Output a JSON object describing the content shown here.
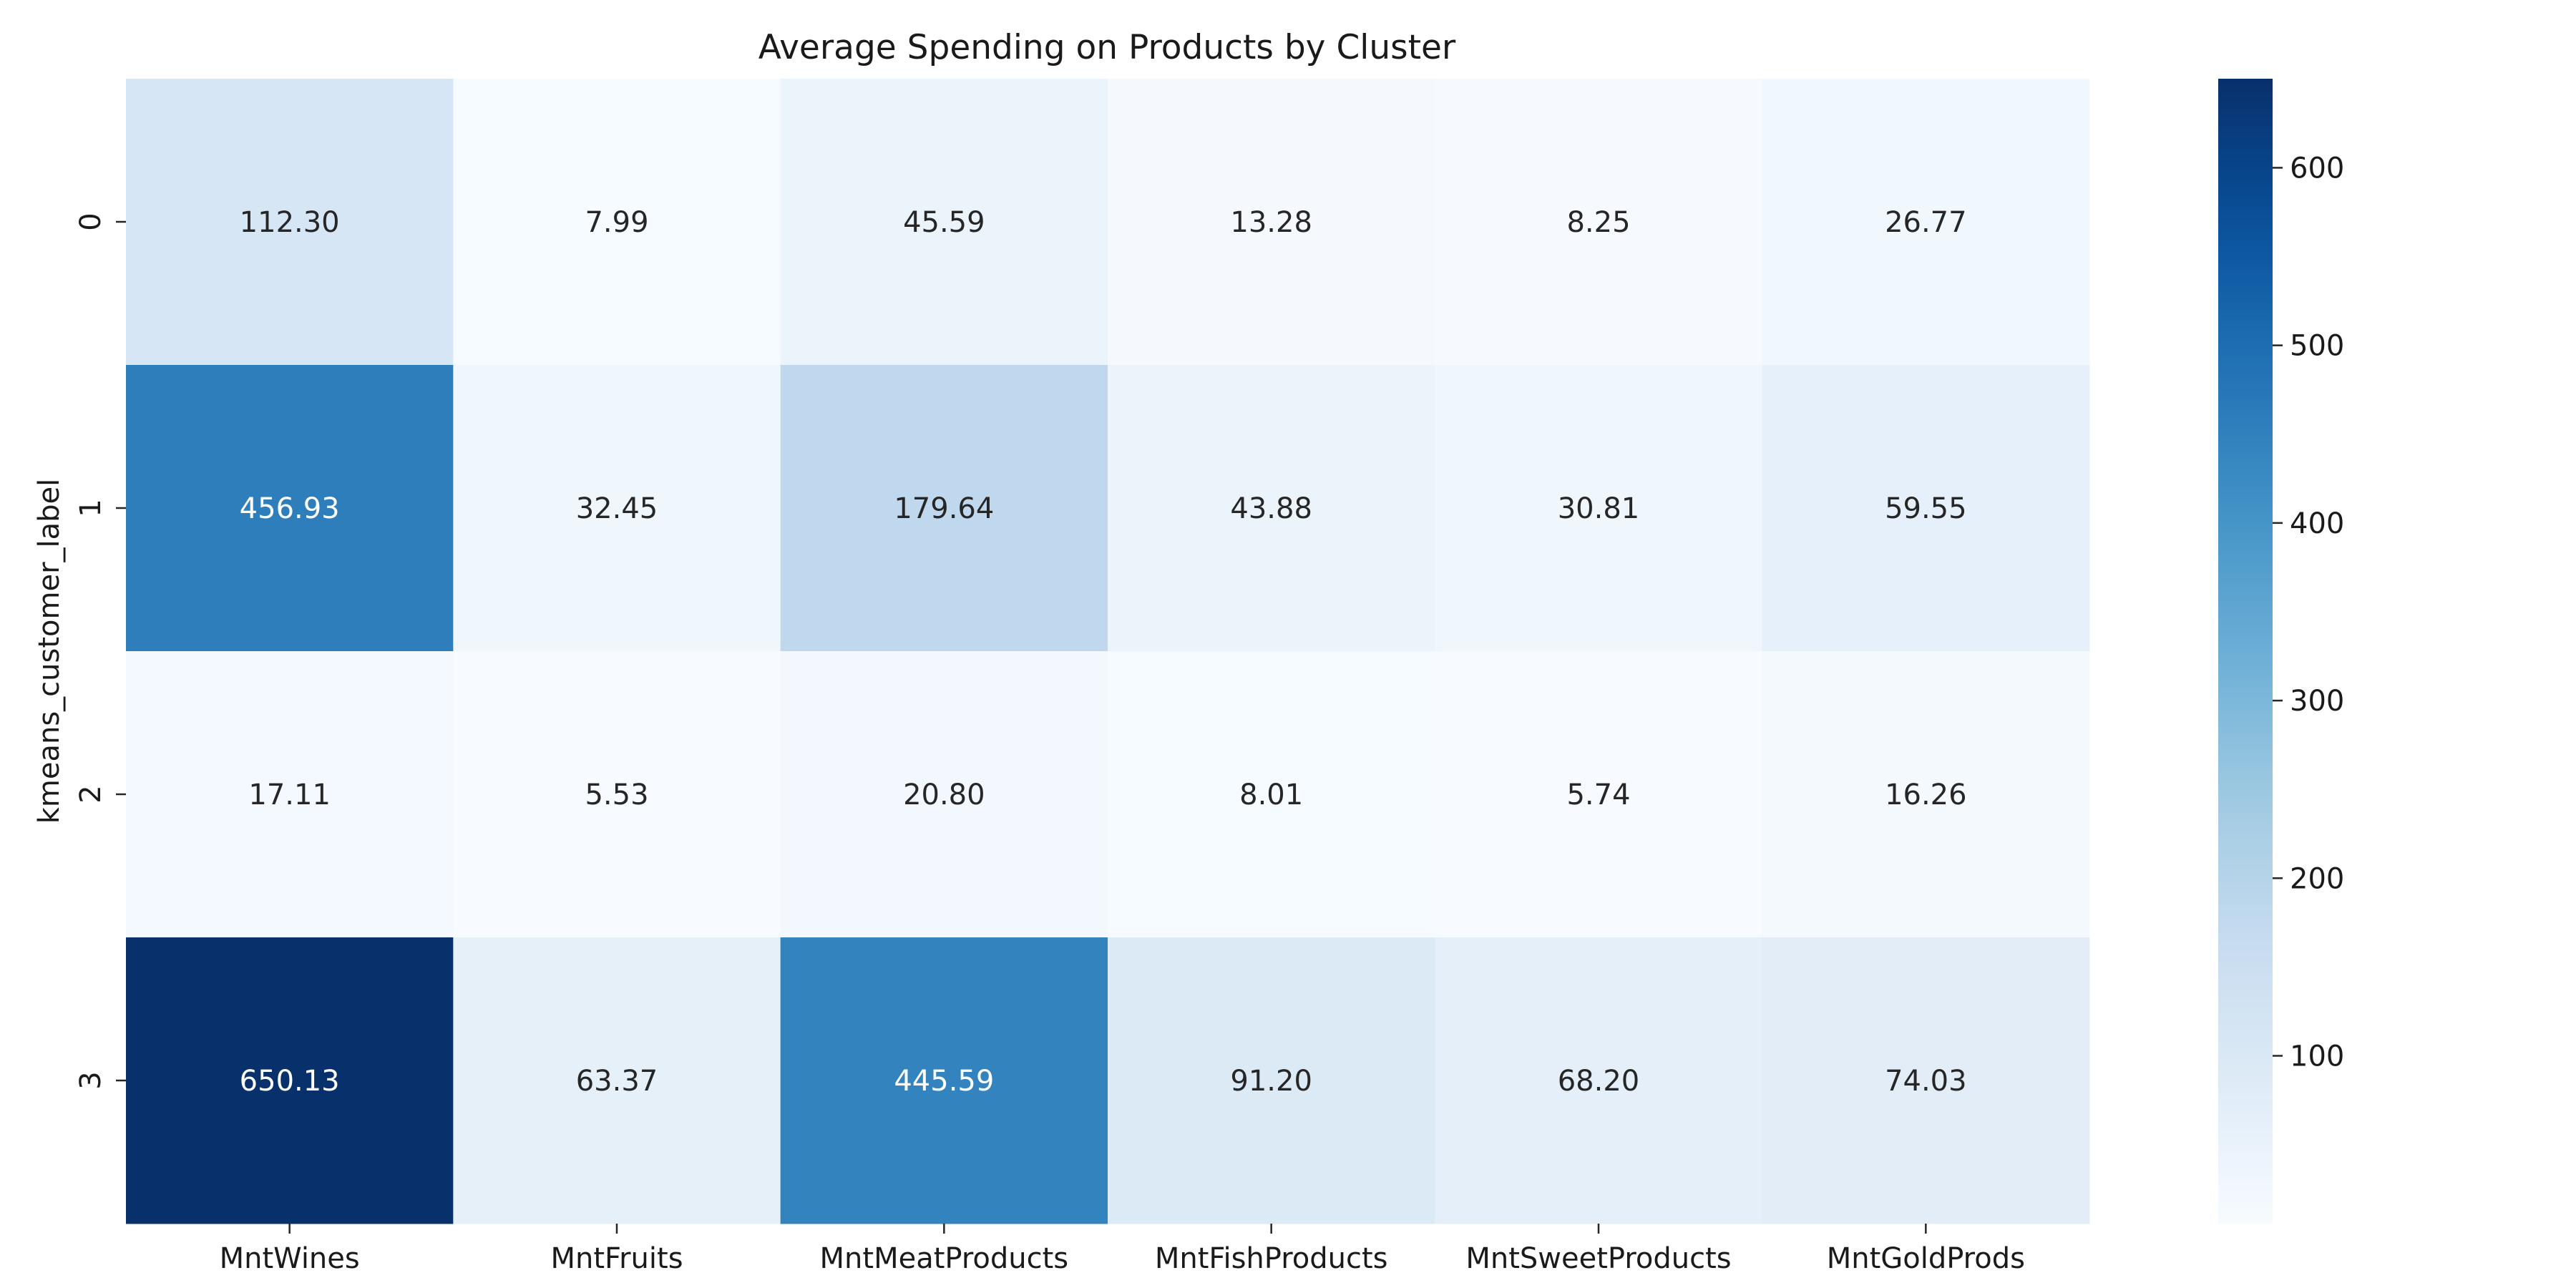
{
  "chart_data": {
    "type": "heatmap",
    "title": "Average Spending on Products by Cluster",
    "xlabel": "",
    "ylabel": "kmeans_customer_label",
    "x_categories": [
      "MntWines",
      "MntFruits",
      "MntMeatProducts",
      "MntFishProducts",
      "MntSweetProducts",
      "MntGoldProds"
    ],
    "y_categories": [
      "0",
      "1",
      "2",
      "3"
    ],
    "values": [
      [
        112.3,
        7.99,
        45.59,
        13.28,
        8.25,
        26.77
      ],
      [
        456.93,
        32.45,
        179.64,
        43.88,
        30.81,
        59.55
      ],
      [
        17.11,
        5.53,
        20.8,
        8.01,
        5.74,
        16.26
      ],
      [
        650.13,
        63.37,
        445.59,
        91.2,
        68.2,
        74.03
      ]
    ],
    "value_format": "2 decimals",
    "colormap": "Blues",
    "colorbar": {
      "min": 5.53,
      "max": 650.13,
      "ticks": [
        100,
        200,
        300,
        400,
        500,
        600
      ]
    }
  }
}
